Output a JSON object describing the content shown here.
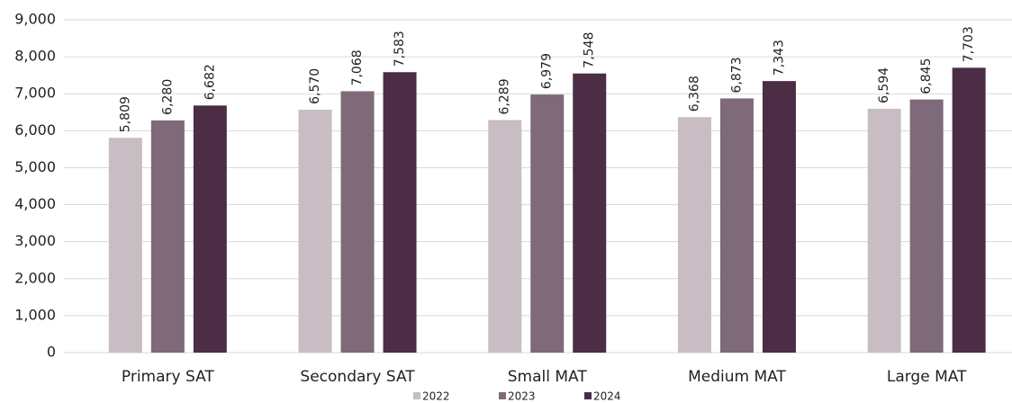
{
  "chart_data": {
    "type": "bar",
    "categories": [
      "Primary SAT",
      "Secondary SAT",
      "Small MAT",
      "Medium MAT",
      "Large MAT"
    ],
    "series": [
      {
        "name": "2022",
        "color": "#c8bdc3",
        "values": [
          5809,
          6570,
          6289,
          6368,
          6594
        ],
        "value_labels": [
          "5,809",
          "6,570",
          "6,289",
          "6,368",
          "6,594"
        ]
      },
      {
        "name": "2023",
        "color": "#7f6a79",
        "values": [
          6280,
          7068,
          6979,
          6873,
          6845
        ],
        "value_labels": [
          "6,280",
          "7,068",
          "6,979",
          "6,873",
          "6,845"
        ]
      },
      {
        "name": "2024",
        "color": "#4b2d46",
        "values": [
          6682,
          7583,
          7548,
          7343,
          7703
        ],
        "value_labels": [
          "6,682",
          "7,583",
          "7,548",
          "7,343",
          "7,703"
        ]
      }
    ],
    "ylim": [
      0,
      9000
    ],
    "yticks": [
      0,
      {
        "value": 1000,
        "label": "1,000"
      },
      {
        "value": 2000,
        "label": "2,000"
      },
      {
        "value": 3000,
        "label": "3,000"
      },
      {
        "value": 4000,
        "label": "4,000"
      },
      {
        "value": 5000,
        "label": "5,000"
      },
      {
        "value": 6000,
        "label": "6,000"
      },
      {
        "value": 7000,
        "label": "7,000"
      },
      {
        "value": 8000,
        "label": "8,000"
      },
      {
        "value": 9000,
        "label": "9,000"
      }
    ],
    "grid": true,
    "legend": "bottom"
  }
}
